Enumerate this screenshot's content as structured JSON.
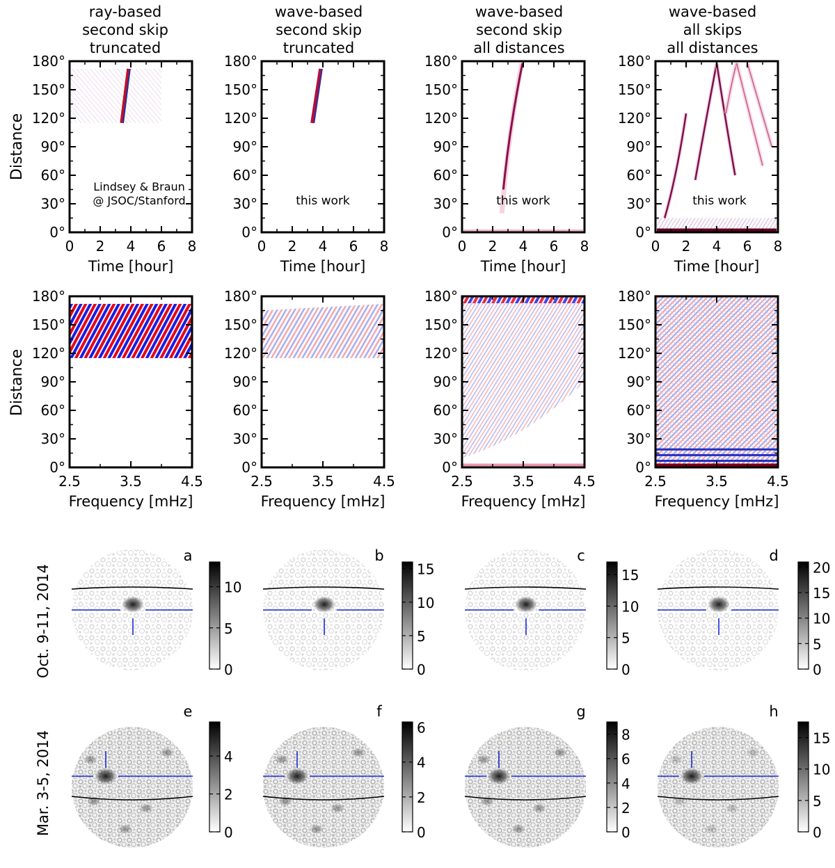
{
  "columns": [
    {
      "title": [
        "ray-based",
        "second skip",
        "truncated"
      ],
      "note": [
        "Lindsey & Braun",
        "@ JSOC/Stanford"
      ]
    },
    {
      "title": [
        "wave-based",
        "second skip",
        "truncated"
      ],
      "note": [
        "this work"
      ]
    },
    {
      "title": [
        "wave-based",
        "second skip",
        "all distances"
      ],
      "note": [
        "this work"
      ]
    },
    {
      "title": [
        "wave-based",
        "all skips",
        "all distances"
      ],
      "note": [
        "this work"
      ]
    }
  ],
  "chart_data": [
    {
      "type": "heatmap",
      "row": "time-distance",
      "xlabel": "Time [hour]",
      "ylabel": "Distance",
      "xlim": [
        0,
        8
      ],
      "ylim": [
        0,
        180
      ],
      "xticks": [
        "0",
        "2",
        "4",
        "6",
        "8"
      ],
      "yticks": [
        "0°",
        "30°",
        "60°",
        "90°",
        "120°",
        "150°",
        "180°"
      ]
    },
    {
      "type": "heatmap",
      "row": "frequency-distance",
      "xlabel": "Frequency [mHz]",
      "ylabel": "Distance",
      "xlim": [
        2.5,
        4.5
      ],
      "ylim": [
        0,
        180
      ],
      "xticks": [
        "2.5",
        "3.5",
        "4.5"
      ],
      "yticks": [
        "0°",
        "30°",
        "60°",
        "90°",
        "120°",
        "150°",
        "180°"
      ]
    },
    {
      "type": "heatmap",
      "row": "farside-maps",
      "row_labels": [
        "Oct. 9-11, 2014",
        "Mar. 3-5, 2014"
      ],
      "panels": [
        {
          "label": "a",
          "colorbar_max": 13,
          "ticks": [
            "0",
            "5",
            "10"
          ]
        },
        {
          "label": "b",
          "colorbar_max": 16,
          "ticks": [
            "0",
            "5",
            "10",
            "15"
          ]
        },
        {
          "label": "c",
          "colorbar_max": 17,
          "ticks": [
            "0",
            "5",
            "10",
            "15"
          ]
        },
        {
          "label": "d",
          "colorbar_max": 21,
          "ticks": [
            "0",
            "5",
            "10",
            "15",
            "20"
          ]
        },
        {
          "label": "e",
          "colorbar_max": 5.8,
          "ticks": [
            "0",
            "2",
            "4"
          ]
        },
        {
          "label": "f",
          "colorbar_max": 6.3,
          "ticks": [
            "0",
            "2",
            "4",
            "6"
          ]
        },
        {
          "label": "g",
          "colorbar_max": 9,
          "ticks": [
            "0",
            "2",
            "4",
            "6",
            "8"
          ]
        },
        {
          "label": "h",
          "colorbar_max": 17.5,
          "ticks": [
            "0",
            "5",
            "10",
            "15"
          ]
        }
      ]
    }
  ]
}
